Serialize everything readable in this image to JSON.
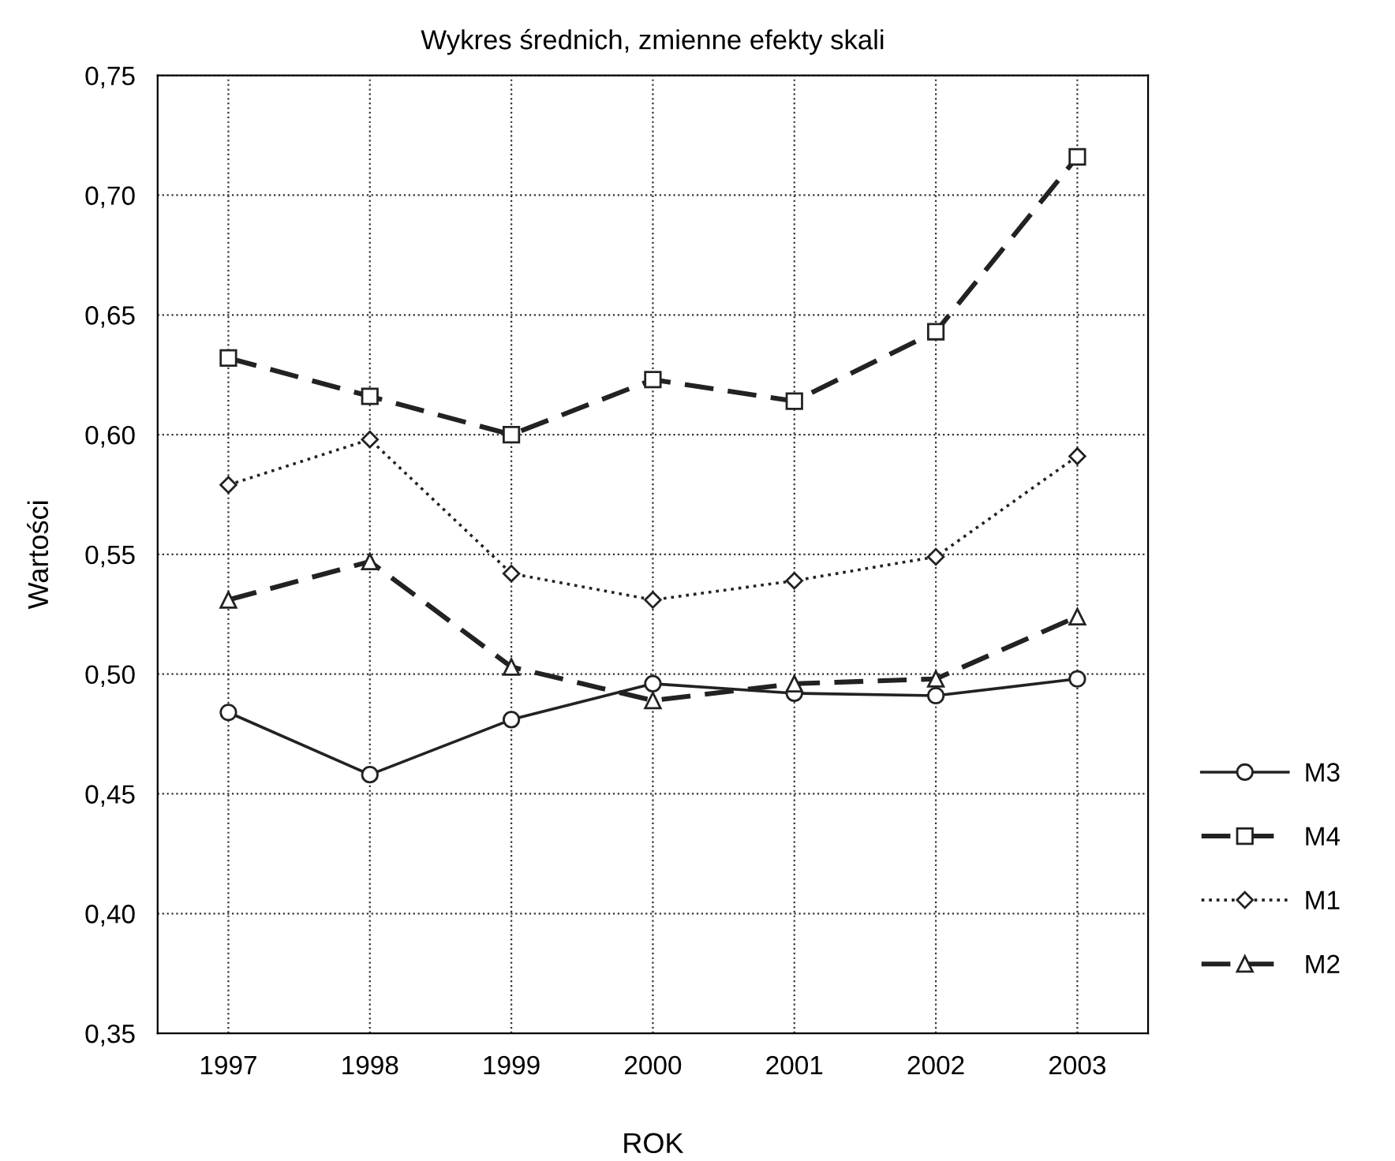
{
  "chart_data": {
    "type": "line",
    "title": "Wykres średnich, zmienne efekty skali",
    "xlabel": "ROK",
    "ylabel": "Wartości",
    "categories": [
      "1997",
      "1998",
      "1999",
      "2000",
      "2001",
      "2002",
      "2003"
    ],
    "series": [
      {
        "name": "M3",
        "color": "#222222",
        "marker": "circle",
        "line_style": "solid",
        "values": [
          0.484,
          0.458,
          0.481,
          0.496,
          0.492,
          0.491,
          0.498
        ]
      },
      {
        "name": "M4",
        "color": "#222222",
        "marker": "square",
        "line_style": "dashed",
        "values": [
          0.632,
          0.616,
          0.6,
          0.623,
          0.614,
          0.643,
          0.716
        ]
      },
      {
        "name": "M1",
        "color": "#222222",
        "marker": "diamond",
        "line_style": "dotted",
        "values": [
          0.579,
          0.598,
          0.542,
          0.531,
          0.539,
          0.549,
          0.591
        ]
      },
      {
        "name": "M2",
        "color": "#222222",
        "marker": "triangle",
        "line_style": "dashed",
        "values": [
          0.531,
          0.547,
          0.503,
          0.489,
          0.496,
          0.498,
          0.524
        ]
      }
    ],
    "ylim": [
      0.35,
      0.75
    ],
    "yticks": [
      {
        "value": 0.35,
        "label": "0,35"
      },
      {
        "value": 0.4,
        "label": "0,40"
      },
      {
        "value": 0.45,
        "label": "0,45"
      },
      {
        "value": 0.5,
        "label": "0,50"
      },
      {
        "value": 0.55,
        "label": "0,55"
      },
      {
        "value": 0.6,
        "label": "0,60"
      },
      {
        "value": 0.65,
        "label": "0,65"
      },
      {
        "value": 0.7,
        "label": "0,70"
      },
      {
        "value": 0.75,
        "label": "0,75"
      }
    ],
    "grid": true,
    "legend": "right"
  }
}
